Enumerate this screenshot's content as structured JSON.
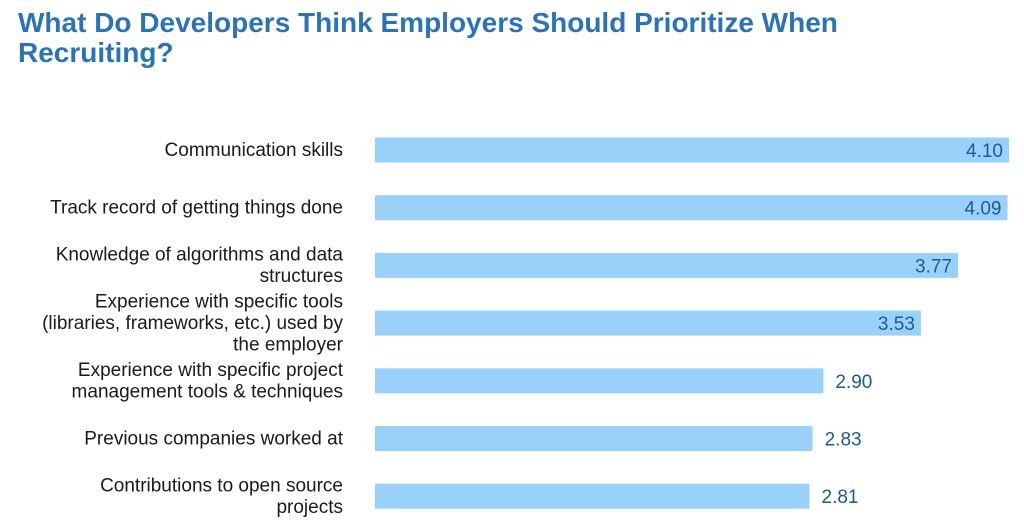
{
  "chart_data": {
    "type": "bar",
    "orientation": "horizontal",
    "title": "What Do Developers Think Employers Should Prioritize When Recruiting?",
    "categories": [
      "Communication skills",
      "Track record of getting things done",
      "Knowledge of algorithms and data structures",
      "Experience with specific tools (libraries, frameworks, etc.) used by the employer",
      "Experience with specific project management tools & techniques",
      "Previous companies worked at",
      "Contributions to open source projects"
    ],
    "category_lines": [
      [
        "Communication skills"
      ],
      [
        "Track record of getting things done"
      ],
      [
        "Knowledge of algorithms and data",
        "structures"
      ],
      [
        "Experience with specific tools",
        "(libraries, frameworks, etc.) used by",
        "the employer"
      ],
      [
        "Experience with specific project",
        "management tools & techniques"
      ],
      [
        "Previous companies worked at"
      ],
      [
        "Contributions to open source",
        "projects"
      ]
    ],
    "values": [
      4.1,
      4.09,
      3.77,
      3.53,
      2.9,
      2.83,
      2.81
    ],
    "value_labels": [
      "4.10",
      "4.09",
      "3.77",
      "3.53",
      "2.90",
      "2.83",
      "2.81"
    ],
    "xlim": [
      0,
      4.1
    ],
    "xlabel": "",
    "ylabel": "",
    "grid": false,
    "legend": "none",
    "colors": {
      "bar": "#99d1fb",
      "value_text": "#1d5a94",
      "label_text": "#1a1a1a",
      "title": "#2b73b7"
    }
  }
}
